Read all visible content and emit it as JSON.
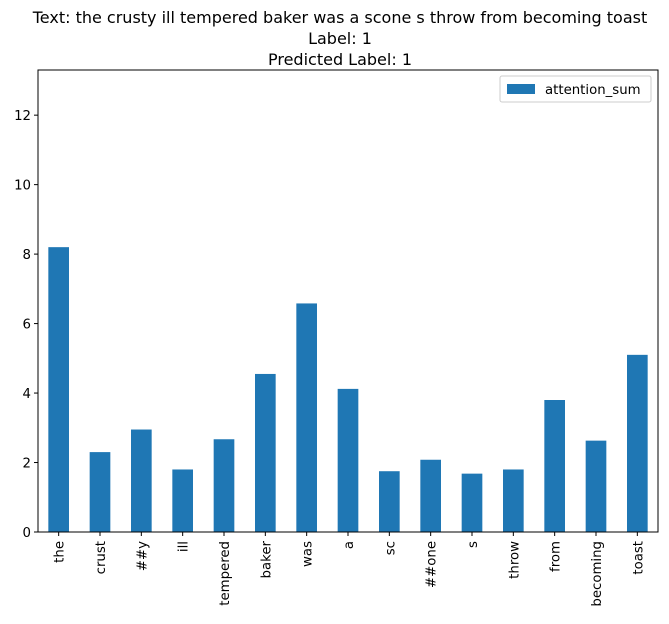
{
  "chart_data": {
    "type": "bar",
    "title_lines": [
      "Text: the crusty ill tempered baker was a scone s throw from becoming toast",
      "Label: 1",
      "Predicted Label: 1"
    ],
    "xlabel": "",
    "ylabel": "",
    "categories": [
      "the",
      "crust",
      "##y",
      "ill",
      "tempered",
      "baker",
      "was",
      "a",
      "sc",
      "##one",
      "s",
      "throw",
      "from",
      "becoming",
      "toast"
    ],
    "series": [
      {
        "name": "attention_sum",
        "color": "#1f77b4",
        "values": [
          8.2,
          2.3,
          2.95,
          1.8,
          2.67,
          4.55,
          6.58,
          4.12,
          1.75,
          2.08,
          1.68,
          1.8,
          3.8,
          2.63,
          5.1
        ]
      }
    ],
    "ylim": [
      0,
      13.3
    ],
    "yticks": [
      0,
      2,
      4,
      6,
      8,
      10,
      12
    ],
    "grid": false,
    "legend_position": "top-right"
  }
}
